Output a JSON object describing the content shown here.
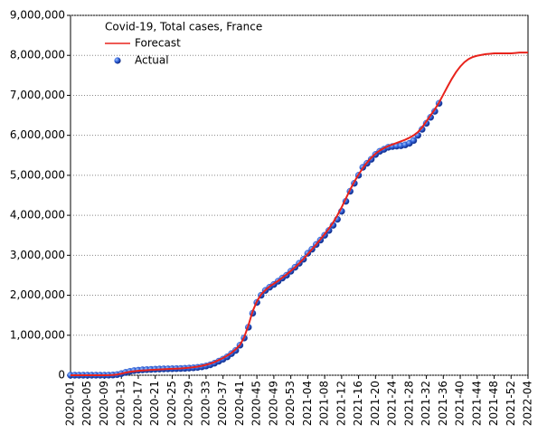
{
  "chart_data": {
    "type": "line",
    "title": "Covid-19, Total cases, France",
    "categories": [
      "2020-01",
      null,
      null,
      null,
      "2020-05",
      null,
      null,
      null,
      "2020-09",
      null,
      null,
      null,
      "2020-13",
      null,
      null,
      null,
      "2020-17",
      null,
      null,
      null,
      "2020-21",
      null,
      null,
      null,
      "2020-25",
      null,
      null,
      null,
      "2020-29",
      null,
      null,
      null,
      "2020-33",
      null,
      null,
      null,
      "2020-37",
      null,
      null,
      null,
      "2020-41",
      null,
      null,
      null,
      "2020-45",
      null,
      null,
      null,
      "2020-49",
      null,
      null,
      null,
      "2020-53",
      null,
      null,
      null,
      "2021-04",
      null,
      null,
      null,
      "2021-08",
      null,
      null,
      null,
      "2021-12",
      null,
      null,
      null,
      "2021-16",
      null,
      null,
      null,
      "2021-20",
      null,
      null,
      null,
      "2021-24",
      null,
      null,
      null,
      "2021-28",
      null,
      null,
      null,
      "2021-32",
      null,
      null,
      null,
      "2021-36",
      null,
      null,
      null,
      "2021-40",
      null,
      null,
      null,
      "2021-44",
      null,
      null,
      null,
      "2021-48",
      null,
      null,
      null,
      "2021-52",
      null,
      null,
      null,
      "2022-04"
    ],
    "series": [
      {
        "name": "Forecast",
        "color": "#e8231c",
        "style": "line",
        "values": [
          0,
          0,
          0,
          0,
          0,
          0,
          0,
          0,
          500,
          2000,
          6000,
          18000,
          40000,
          65000,
          85000,
          100000,
          110000,
          118000,
          125000,
          132000,
          138000,
          144000,
          150000,
          155000,
          160000,
          165000,
          170000,
          178000,
          188000,
          200000,
          215000,
          235000,
          260000,
          290000,
          330000,
          380000,
          430000,
          490000,
          560000,
          650000,
          760000,
          950000,
          1250000,
          1600000,
          1850000,
          2020000,
          2130000,
          2220000,
          2290000,
          2360000,
          2440000,
          2520000,
          2610000,
          2700000,
          2800000,
          2910000,
          3030000,
          3150000,
          3270000,
          3400000,
          3530000,
          3670000,
          3820000,
          4000000,
          4200000,
          4420000,
          4640000,
          4840000,
          5020000,
          5180000,
          5320000,
          5440000,
          5540000,
          5620000,
          5680000,
          5730000,
          5770000,
          5810000,
          5850000,
          5890000,
          5940000,
          6000000,
          6080000,
          6200000,
          6350000,
          6500000,
          6650000,
          6820000,
          7020000,
          7220000,
          7410000,
          7580000,
          7720000,
          7830000,
          7910000,
          7960000,
          7990000,
          8010000,
          8030000,
          8040000,
          8050000,
          8050000,
          8050000,
          8050000,
          8050000,
          8060000,
          8070000,
          8070000,
          8070000
        ]
      },
      {
        "name": "Actual",
        "color": "#1f4fc8",
        "style": "marker",
        "values": [
          0,
          0,
          0,
          0,
          0,
          0,
          0,
          0,
          100,
          1000,
          5000,
          15000,
          40000,
          70000,
          95000,
          115000,
          125000,
          135000,
          140000,
          145000,
          150000,
          155000,
          158000,
          160000,
          162000,
          165000,
          168000,
          172000,
          178000,
          185000,
          195000,
          210000,
          230000,
          260000,
          300000,
          350000,
          400000,
          460000,
          540000,
          620000,
          750000,
          930000,
          1200000,
          1550000,
          1820000,
          2000000,
          2120000,
          2200000,
          2270000,
          2350000,
          2430000,
          2500000,
          2600000,
          2700000,
          2800000,
          2900000,
          3050000,
          3150000,
          3270000,
          3380000,
          3500000,
          3620000,
          3750000,
          3900000,
          4100000,
          4350000,
          4600000,
          4800000,
          5000000,
          5200000,
          5300000,
          5400000,
          5520000,
          5600000,
          5650000,
          5700000,
          5720000,
          5730000,
          5740000,
          5760000,
          5800000,
          5870000,
          6000000,
          6150000,
          6300000,
          6450000,
          6600000,
          6800000,
          null,
          null,
          null,
          null,
          null,
          null,
          null,
          null,
          null,
          null,
          null,
          null,
          null,
          null,
          null,
          null,
          null,
          null,
          null,
          null,
          null
        ]
      }
    ],
    "ylim": [
      0,
      9000000
    ],
    "yticks": [
      0,
      {
        "value": 1000000,
        "label": "1,000,000"
      },
      {
        "value": 2000000,
        "label": "2,000,000"
      },
      {
        "value": 3000000,
        "label": "3,000,000"
      },
      {
        "value": 4000000,
        "label": "4,000,000"
      },
      {
        "value": 5000000,
        "label": "5,000,000"
      },
      {
        "value": 6000000,
        "label": "6,000,000"
      },
      {
        "value": 7000000,
        "label": "7,000,000"
      },
      {
        "value": 8000000,
        "label": "8,000,000"
      },
      {
        "value": 9000000,
        "label": "9,000,000"
      }
    ],
    "grid": true
  }
}
